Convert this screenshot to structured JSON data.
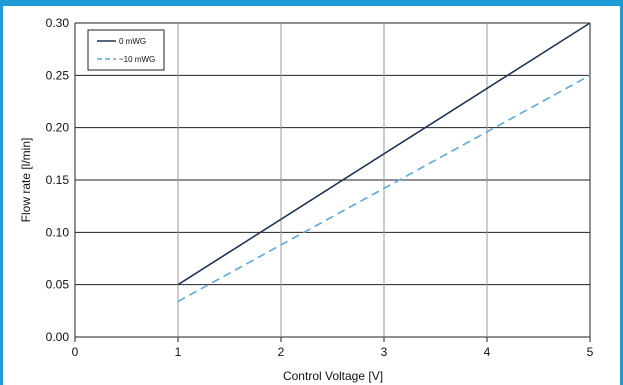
{
  "chart_data": {
    "type": "line",
    "xlabel": "Control Voltage [V]",
    "ylabel": "Flow rate [l/min]",
    "xlim": [
      0,
      5
    ],
    "ylim": [
      0,
      0.3
    ],
    "x_ticks": [
      "0",
      "1",
      "2",
      "3",
      "4",
      "5"
    ],
    "y_ticks": [
      "0.00",
      "0.05",
      "0.10",
      "0.15",
      "0.20",
      "0.25",
      "0.30"
    ],
    "grid": true,
    "legend_position": "top-left",
    "series": [
      {
        "name": "0 mWG",
        "x": [
          1,
          5
        ],
        "y": [
          0.05,
          0.3
        ],
        "color": "#1f3553",
        "style": "solid"
      },
      {
        "name": "~10 mWG",
        "x": [
          1,
          5
        ],
        "y": [
          0.034,
          0.25
        ],
        "color": "#5aa9dc",
        "style": "dashed"
      }
    ]
  },
  "colors": {
    "accent": "#1e9bd7",
    "grid_major": "#222222",
    "grid_minor": "#9a9a9a"
  }
}
